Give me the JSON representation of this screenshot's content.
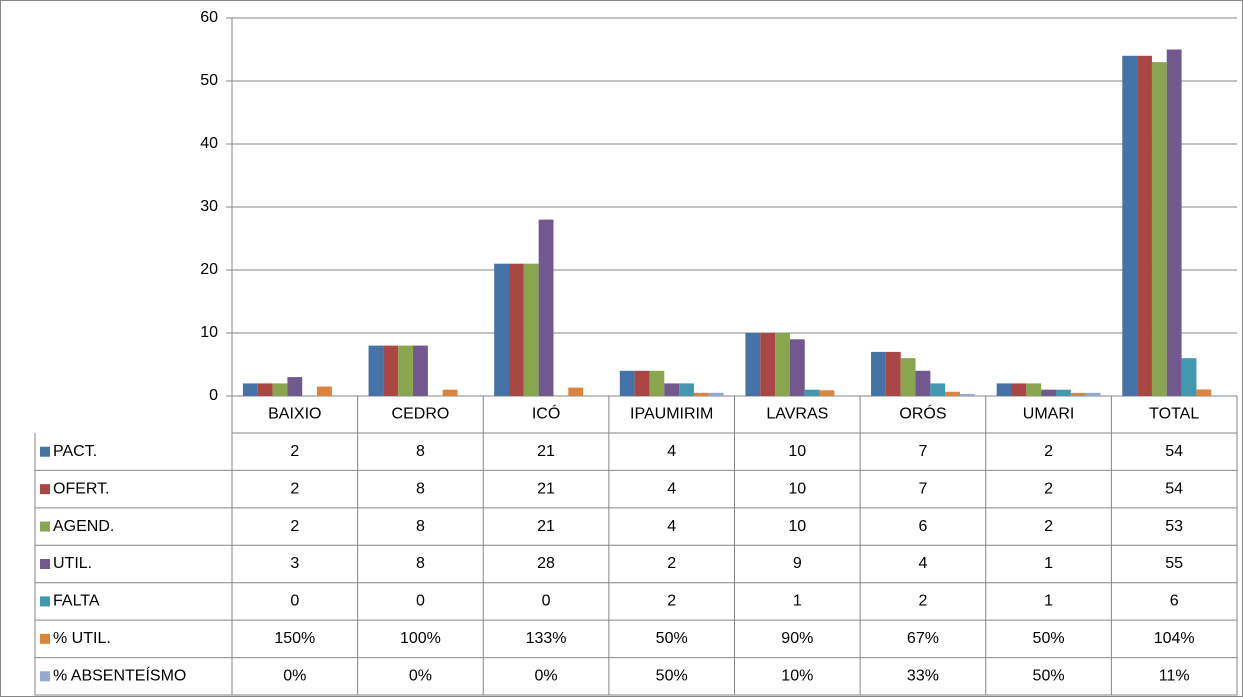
{
  "chart_data": {
    "type": "bar",
    "categories": [
      "BAIXIO",
      "CEDRO",
      "ICÓ",
      "IPAUMIRIM",
      "LAVRAS",
      "ORÓS",
      "UMARI",
      "TOTAL"
    ],
    "series": [
      {
        "name": "PACT.",
        "color": "#4572A7",
        "values": [
          2,
          8,
          21,
          4,
          10,
          7,
          2,
          54
        ]
      },
      {
        "name": "OFERT.",
        "color": "#AA4643",
        "values": [
          2,
          8,
          21,
          4,
          10,
          7,
          2,
          54
        ]
      },
      {
        "name": "AGEND.",
        "color": "#89A54E",
        "values": [
          2,
          8,
          21,
          4,
          10,
          6,
          2,
          53
        ]
      },
      {
        "name": "UTIL.",
        "color": "#71588F",
        "values": [
          3,
          8,
          28,
          2,
          9,
          4,
          1,
          55
        ]
      },
      {
        "name": "FALTA",
        "color": "#4198AF",
        "values": [
          0,
          0,
          0,
          2,
          1,
          2,
          1,
          6
        ]
      },
      {
        "name": "% UTIL.",
        "color": "#DB843D",
        "values": [
          1.5,
          1.0,
          1.33,
          0.5,
          0.9,
          0.67,
          0.5,
          1.04
        ],
        "value_labels": [
          "150%",
          "100%",
          "133%",
          "50%",
          "90%",
          "67%",
          "50%",
          "104%"
        ]
      },
      {
        "name": "% ABSENTEÍSMO",
        "color": "#93A9CF",
        "values": [
          0,
          0,
          0,
          0.5,
          0.1,
          0.33,
          0.5,
          0.11
        ],
        "value_labels": [
          "0%",
          "0%",
          "0%",
          "50%",
          "10%",
          "33%",
          "50%",
          "11%"
        ]
      }
    ],
    "ylim": [
      0,
      60
    ],
    "yticks": [
      0,
      10,
      20,
      30,
      40,
      50,
      60
    ],
    "grid": true
  }
}
